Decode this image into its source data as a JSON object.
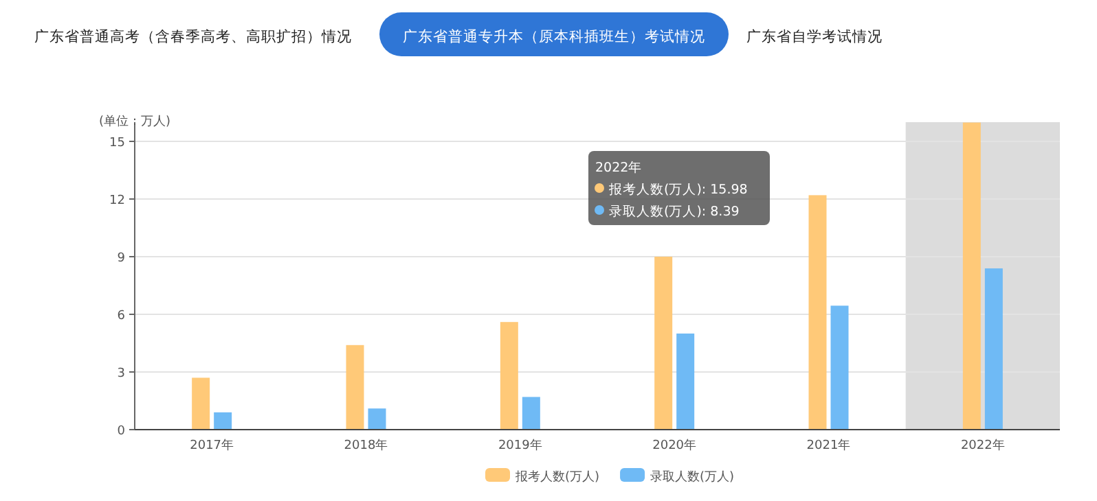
{
  "chart_data": {
    "type": "bar",
    "ylabel": "(单位：万人)",
    "categories": [
      "2017年",
      "2018年",
      "2019年",
      "2020年",
      "2021年",
      "2022年"
    ],
    "series": [
      {
        "name": "报考人数(万人)",
        "color": "#ffc978",
        "values": [
          2.7,
          4.4,
          5.6,
          9.0,
          12.2,
          15.98
        ]
      },
      {
        "name": "录取人数(万人)",
        "color": "#6fbaf5",
        "values": [
          0.9,
          1.1,
          1.7,
          5.0,
          6.45,
          8.39
        ]
      }
    ],
    "ylim": [
      0,
      16
    ],
    "yticks": [
      0,
      3,
      6,
      9,
      12,
      15
    ],
    "grid": "y",
    "legend": "bottom",
    "bands": [
      {
        "axis": "x",
        "from": "2022年",
        "to": "2022年",
        "color": "#dcdcdc"
      }
    ],
    "annotations": [
      "广东省普通高考（含春季高考、高职扩招）情况",
      "广东省普通专升本（原本科插班生）考试情况",
      "广东省自学考试情况",
      "2022年",
      "报考人数(万人): 15.98",
      "录取人数(万人): 8.39"
    ]
  }
}
